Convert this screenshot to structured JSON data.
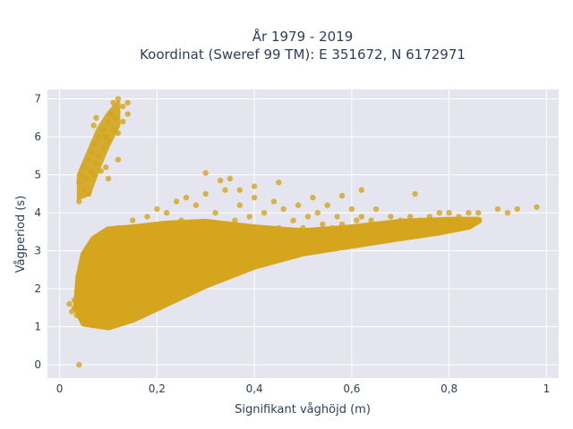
{
  "chart_data": {
    "type": "scatter",
    "title_line1": "År 1979 - 2019",
    "title_line2": "Koordinat (Sweref 99 TM): E 351672, N 6172971",
    "xlabel": "Signifikant våghöjd (m)",
    "ylabel": "Vågperiod (s)",
    "xlim": [
      -0.025,
      1.025
    ],
    "ylim": [
      -0.35,
      7.25
    ],
    "x_ticks": [
      {
        "value": 0,
        "label": "0"
      },
      {
        "value": 0.2,
        "label": "0,2"
      },
      {
        "value": 0.4,
        "label": "0,4"
      },
      {
        "value": 0.6,
        "label": "0,6"
      },
      {
        "value": 0.8,
        "label": "0,8"
      },
      {
        "value": 1.0,
        "label": "1"
      }
    ],
    "y_ticks": [
      {
        "value": 0,
        "label": "0"
      },
      {
        "value": 1,
        "label": "1"
      },
      {
        "value": 2,
        "label": "2"
      },
      {
        "value": 3,
        "label": "3"
      },
      {
        "value": 4,
        "label": "4"
      },
      {
        "value": 5,
        "label": "5"
      },
      {
        "value": 6,
        "label": "6"
      },
      {
        "value": 7,
        "label": "7"
      }
    ],
    "grid": true,
    "marker_color": "#d4a51d",
    "plot_bg": "#e5e5f0",
    "points": [
      [
        0.04,
        0.0
      ],
      [
        0.02,
        1.6
      ],
      [
        0.025,
        1.4
      ],
      [
        0.03,
        1.5
      ],
      [
        0.03,
        1.7
      ],
      [
        0.035,
        1.3
      ],
      [
        0.04,
        1.5
      ],
      [
        0.045,
        1.8
      ],
      [
        0.05,
        2.0
      ],
      [
        0.05,
        1.2
      ],
      [
        0.05,
        2.4
      ],
      [
        0.055,
        2.6
      ],
      [
        0.06,
        2.2
      ],
      [
        0.06,
        1.4
      ],
      [
        0.065,
        2.8
      ],
      [
        0.07,
        3.0
      ],
      [
        0.07,
        1.6
      ],
      [
        0.075,
        2.5
      ],
      [
        0.08,
        3.2
      ],
      [
        0.08,
        1.3
      ],
      [
        0.085,
        2.0
      ],
      [
        0.09,
        3.4
      ],
      [
        0.09,
        1.1
      ],
      [
        0.1,
        3.5
      ],
      [
        0.1,
        2.7
      ],
      [
        0.1,
        1.5
      ],
      [
        0.11,
        3.3
      ],
      [
        0.11,
        2.0
      ],
      [
        0.12,
        3.6
      ],
      [
        0.12,
        1.4
      ],
      [
        0.13,
        3.0
      ],
      [
        0.13,
        2.2
      ],
      [
        0.14,
        3.5
      ],
      [
        0.14,
        1.6
      ],
      [
        0.15,
        3.8
      ],
      [
        0.15,
        2.5
      ],
      [
        0.16,
        3.2
      ],
      [
        0.16,
        1.8
      ],
      [
        0.17,
        3.6
      ],
      [
        0.17,
        2.8
      ],
      [
        0.18,
        3.9
      ],
      [
        0.18,
        2.0
      ],
      [
        0.19,
        3.4
      ],
      [
        0.2,
        4.1
      ],
      [
        0.2,
        2.3
      ],
      [
        0.21,
        3.7
      ],
      [
        0.22,
        4.0
      ],
      [
        0.22,
        2.5
      ],
      [
        0.23,
        3.3
      ],
      [
        0.24,
        4.3
      ],
      [
        0.25,
        2.7
      ],
      [
        0.25,
        3.8
      ],
      [
        0.26,
        4.4
      ],
      [
        0.27,
        3.0
      ],
      [
        0.28,
        4.2
      ],
      [
        0.29,
        2.8
      ],
      [
        0.3,
        4.5
      ],
      [
        0.3,
        3.3
      ],
      [
        0.31,
        2.9
      ],
      [
        0.32,
        4.0
      ],
      [
        0.33,
        3.5
      ],
      [
        0.34,
        4.6
      ],
      [
        0.35,
        3.1
      ],
      [
        0.36,
        3.8
      ],
      [
        0.37,
        4.2
      ],
      [
        0.38,
        3.3
      ],
      [
        0.39,
        3.9
      ],
      [
        0.4,
        4.4
      ],
      [
        0.41,
        3.5
      ],
      [
        0.42,
        4.0
      ],
      [
        0.43,
        3.2
      ],
      [
        0.44,
        4.3
      ],
      [
        0.45,
        3.6
      ],
      [
        0.46,
        4.1
      ],
      [
        0.47,
        3.4
      ],
      [
        0.48,
        3.8
      ],
      [
        0.49,
        4.2
      ],
      [
        0.5,
        3.6
      ],
      [
        0.51,
        3.9
      ],
      [
        0.52,
        3.5
      ],
      [
        0.53,
        4.0
      ],
      [
        0.54,
        3.7
      ],
      [
        0.55,
        4.2
      ],
      [
        0.56,
        3.6
      ],
      [
        0.57,
        3.9
      ],
      [
        0.58,
        3.7
      ],
      [
        0.6,
        4.1
      ],
      [
        0.61,
        3.8
      ],
      [
        0.62,
        3.9
      ],
      [
        0.64,
        3.8
      ],
      [
        0.65,
        4.1
      ],
      [
        0.66,
        3.7
      ],
      [
        0.68,
        3.9
      ],
      [
        0.7,
        3.8
      ],
      [
        0.72,
        3.9
      ],
      [
        0.74,
        3.8
      ],
      [
        0.76,
        3.9
      ],
      [
        0.78,
        4.0
      ],
      [
        0.8,
        4.0
      ],
      [
        0.82,
        3.9
      ],
      [
        0.84,
        4.0
      ],
      [
        0.86,
        4.0
      ],
      [
        0.9,
        4.1
      ],
      [
        0.92,
        4.0
      ],
      [
        0.94,
        4.1
      ],
      [
        0.98,
        4.15
      ],
      [
        0.35,
        4.9
      ],
      [
        0.3,
        5.05
      ],
      [
        0.33,
        4.85
      ],
      [
        0.45,
        4.8
      ],
      [
        0.62,
        4.6
      ],
      [
        0.4,
        4.7
      ],
      [
        0.52,
        4.4
      ],
      [
        0.73,
        4.5
      ],
      [
        0.58,
        4.45
      ],
      [
        0.37,
        4.6
      ],
      [
        0.04,
        4.3
      ],
      [
        0.04,
        4.8
      ],
      [
        0.045,
        5.0
      ],
      [
        0.05,
        4.6
      ],
      [
        0.05,
        5.2
      ],
      [
        0.055,
        4.9
      ],
      [
        0.06,
        5.4
      ],
      [
        0.06,
        4.5
      ],
      [
        0.065,
        5.6
      ],
      [
        0.07,
        5.0
      ],
      [
        0.07,
        5.8
      ],
      [
        0.075,
        5.3
      ],
      [
        0.08,
        6.0
      ],
      [
        0.08,
        5.5
      ],
      [
        0.085,
        5.1
      ],
      [
        0.09,
        6.2
      ],
      [
        0.09,
        5.7
      ],
      [
        0.095,
        6.0
      ],
      [
        0.1,
        6.4
      ],
      [
        0.1,
        5.9
      ],
      [
        0.105,
        6.6
      ],
      [
        0.11,
        6.2
      ],
      [
        0.11,
        6.9
      ],
      [
        0.115,
        6.5
      ],
      [
        0.12,
        6.1
      ],
      [
        0.12,
        7.0
      ],
      [
        0.13,
        6.8
      ],
      [
        0.13,
        6.4
      ],
      [
        0.14,
        6.9
      ],
      [
        0.14,
        6.6
      ],
      [
        0.075,
        6.5
      ],
      [
        0.07,
        6.3
      ],
      [
        0.095,
        5.2
      ],
      [
        0.1,
        4.9
      ],
      [
        0.12,
        5.4
      ],
      [
        0.065,
        5.1
      ]
    ]
  }
}
